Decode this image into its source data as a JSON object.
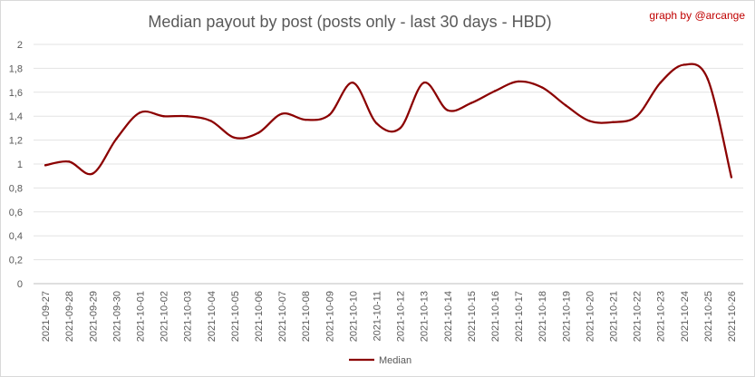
{
  "watermark": "graph by @arcange",
  "chart_data": {
    "type": "line",
    "title": "Median payout by post (posts only - last 30 days - HBD)",
    "xlabel": "",
    "ylabel": "",
    "ylim": [
      0,
      2
    ],
    "yticks": [
      "0",
      "0,2",
      "0,4",
      "0,6",
      "0,8",
      "1",
      "1,2",
      "1,4",
      "1,6",
      "1,8",
      "2"
    ],
    "grid": true,
    "legend_position": "bottom",
    "categories": [
      "2021-09-27",
      "2021-09-28",
      "2021-09-29",
      "2021-09-30",
      "2021-10-01",
      "2021-10-02",
      "2021-10-03",
      "2021-10-04",
      "2021-10-05",
      "2021-10-06",
      "2021-10-07",
      "2021-10-08",
      "2021-10-09",
      "2021-10-10",
      "2021-10-11",
      "2021-10-12",
      "2021-10-13",
      "2021-10-14",
      "2021-10-15",
      "2021-10-16",
      "2021-10-17",
      "2021-10-18",
      "2021-10-19",
      "2021-10-20",
      "2021-10-21",
      "2021-10-22",
      "2021-10-23",
      "2021-10-24",
      "2021-10-25",
      "2021-10-26"
    ],
    "series": [
      {
        "name": "Median",
        "color": "#8b0000",
        "values": [
          0.99,
          1.02,
          0.92,
          1.21,
          1.43,
          1.4,
          1.4,
          1.36,
          1.22,
          1.26,
          1.42,
          1.37,
          1.41,
          1.68,
          1.34,
          1.3,
          1.68,
          1.45,
          1.51,
          1.61,
          1.69,
          1.64,
          1.49,
          1.36,
          1.35,
          1.4,
          1.68,
          1.83,
          1.71,
          0.89
        ]
      }
    ]
  }
}
